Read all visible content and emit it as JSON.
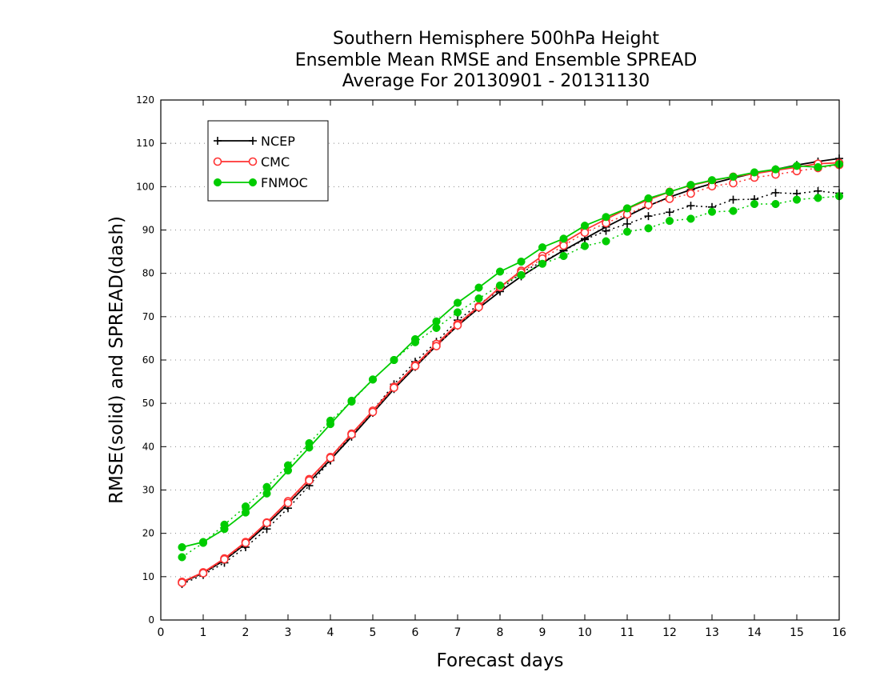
{
  "chart_data": {
    "type": "line",
    "title": [
      "Southern Hemisphere 500hPa Height",
      "Ensemble Mean RMSE and Ensemble SPREAD",
      "Average For 20130901 - 20131130"
    ],
    "xlabel": "Forecast days",
    "ylabel": "RMSE(solid) and SPREAD(dash)",
    "xlim": [
      0,
      16
    ],
    "ylim": [
      0,
      120
    ],
    "xticks": [
      0,
      1,
      2,
      3,
      4,
      5,
      6,
      7,
      8,
      9,
      10,
      11,
      12,
      13,
      14,
      15,
      16
    ],
    "yticks": [
      0,
      10,
      20,
      30,
      40,
      50,
      60,
      70,
      80,
      90,
      100,
      110,
      120
    ],
    "grid": true,
    "legend_position": "top-left",
    "x": [
      0.5,
      1,
      1.5,
      2,
      2.5,
      3,
      3.5,
      4,
      4.5,
      5,
      5.5,
      6,
      6.5,
      7,
      7.5,
      8,
      8.5,
      9,
      9.5,
      10,
      10.5,
      11,
      11.5,
      12,
      12.5,
      13,
      13.5,
      14,
      14.5,
      15,
      15.5,
      16
    ],
    "series": [
      {
        "name": "NCEP",
        "kind": "RMSE",
        "line": "solid",
        "marker": "plus",
        "color": "#000000",
        "values": [
          8.7,
          10.8,
          13.8,
          17.6,
          22.0,
          26.8,
          31.8,
          37.0,
          42.3,
          47.8,
          53.3,
          58.4,
          63.3,
          67.9,
          72.0,
          75.8,
          79.3,
          82.4,
          85.3,
          88.0,
          90.7,
          93.2,
          95.6,
          97.6,
          99.3,
          100.7,
          102.0,
          103.1,
          104.0,
          105.0,
          105.8,
          106.5
        ]
      },
      {
        "name": "NCEP",
        "kind": "SPREAD",
        "line": "dash",
        "marker": "plus",
        "color": "#000000",
        "values": [
          8.3,
          10.4,
          13.2,
          16.8,
          21.0,
          25.8,
          31.0,
          36.8,
          42.8,
          48.3,
          54.4,
          59.6,
          64.2,
          69.2,
          72.8,
          76.2,
          80.2,
          82.7,
          85.2,
          87.8,
          89.8,
          91.4,
          93.2,
          94.1,
          95.6,
          95.3,
          97.0,
          97.1,
          98.6,
          98.4,
          99.0,
          98.5
        ]
      },
      {
        "name": "CMC",
        "kind": "RMSE",
        "line": "solid",
        "marker": "circle",
        "color": "#ff3333",
        "values": [
          8.8,
          11.0,
          14.2,
          18.0,
          22.5,
          27.4,
          32.5,
          37.6,
          43.0,
          48.3,
          53.8,
          58.8,
          63.7,
          68.3,
          72.4,
          76.8,
          80.6,
          84.0,
          87.1,
          90.0,
          92.5,
          94.9,
          97.0,
          98.8,
          100.3,
          101.4,
          102.3,
          103.0,
          103.8,
          104.5,
          105.3,
          105.5
        ]
      },
      {
        "name": "CMC",
        "kind": "SPREAD",
        "line": "dash",
        "marker": "circle",
        "color": "#ff3333",
        "values": [
          8.6,
          10.8,
          14.0,
          17.8,
          22.4,
          27.0,
          32.2,
          37.4,
          42.8,
          48.0,
          53.6,
          58.6,
          63.2,
          68.0,
          72.2,
          76.8,
          80.2,
          83.4,
          86.4,
          89.4,
          91.6,
          93.6,
          95.8,
          97.2,
          98.4,
          100.1,
          100.8,
          102.1,
          102.8,
          103.6,
          104.3,
          105.0
        ]
      },
      {
        "name": "FNMOC",
        "kind": "RMSE",
        "line": "solid",
        "marker": "dot",
        "color": "#00cc00",
        "values": [
          16.8,
          18.0,
          21.0,
          24.8,
          29.2,
          34.5,
          39.8,
          45.2,
          50.6,
          55.5,
          60.0,
          64.8,
          68.9,
          73.2,
          76.7,
          80.4,
          82.7,
          86.0,
          88.0,
          91.0,
          93.0,
          95.0,
          97.3,
          98.8,
          100.4,
          101.5,
          102.3,
          103.3,
          104.0,
          104.8,
          104.5,
          105.2
        ]
      },
      {
        "name": "FNMOC",
        "kind": "SPREAD",
        "line": "dash",
        "marker": "dot",
        "color": "#00cc00",
        "values": [
          14.5,
          17.8,
          22.0,
          26.2,
          30.7,
          35.7,
          40.8,
          46.0,
          50.4,
          55.5,
          60.0,
          64.1,
          67.4,
          71.0,
          74.2,
          77.2,
          79.6,
          82.2,
          84.0,
          86.3,
          87.4,
          89.6,
          90.4,
          92.1,
          92.6,
          94.2,
          94.4,
          96.0,
          96.0,
          97.0,
          97.4,
          97.8
        ]
      }
    ],
    "legend": [
      {
        "label": "NCEP",
        "marker": "plus",
        "color": "#000000"
      },
      {
        "label": "CMC",
        "marker": "circle",
        "color": "#ff3333"
      },
      {
        "label": "FNMOC",
        "marker": "dot",
        "color": "#00cc00"
      }
    ]
  }
}
